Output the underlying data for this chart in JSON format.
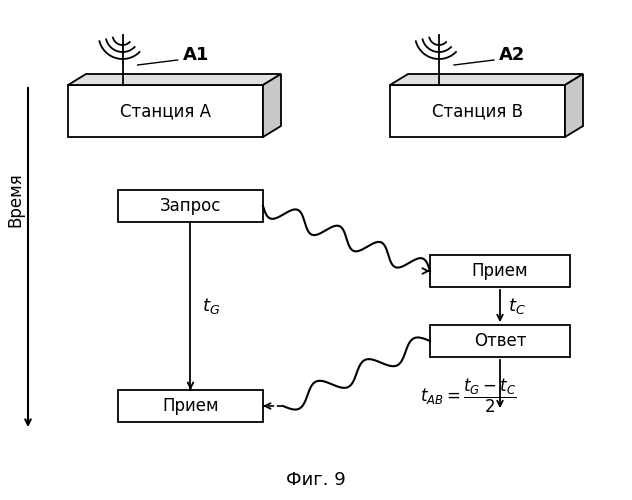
{
  "title": "Фиг. 9",
  "bg_color": "#ffffff",
  "text_color": "#000000",
  "station_a_label": "Станция А",
  "station_b_label": "Станция В",
  "antenna_a_label": "А1",
  "antenna_b_label": "А2",
  "time_label": "Время",
  "zapros_label": "Запрос",
  "priem_b_label": "Прием",
  "otvet_label": "Ответ",
  "priem_a_label": "Прием"
}
